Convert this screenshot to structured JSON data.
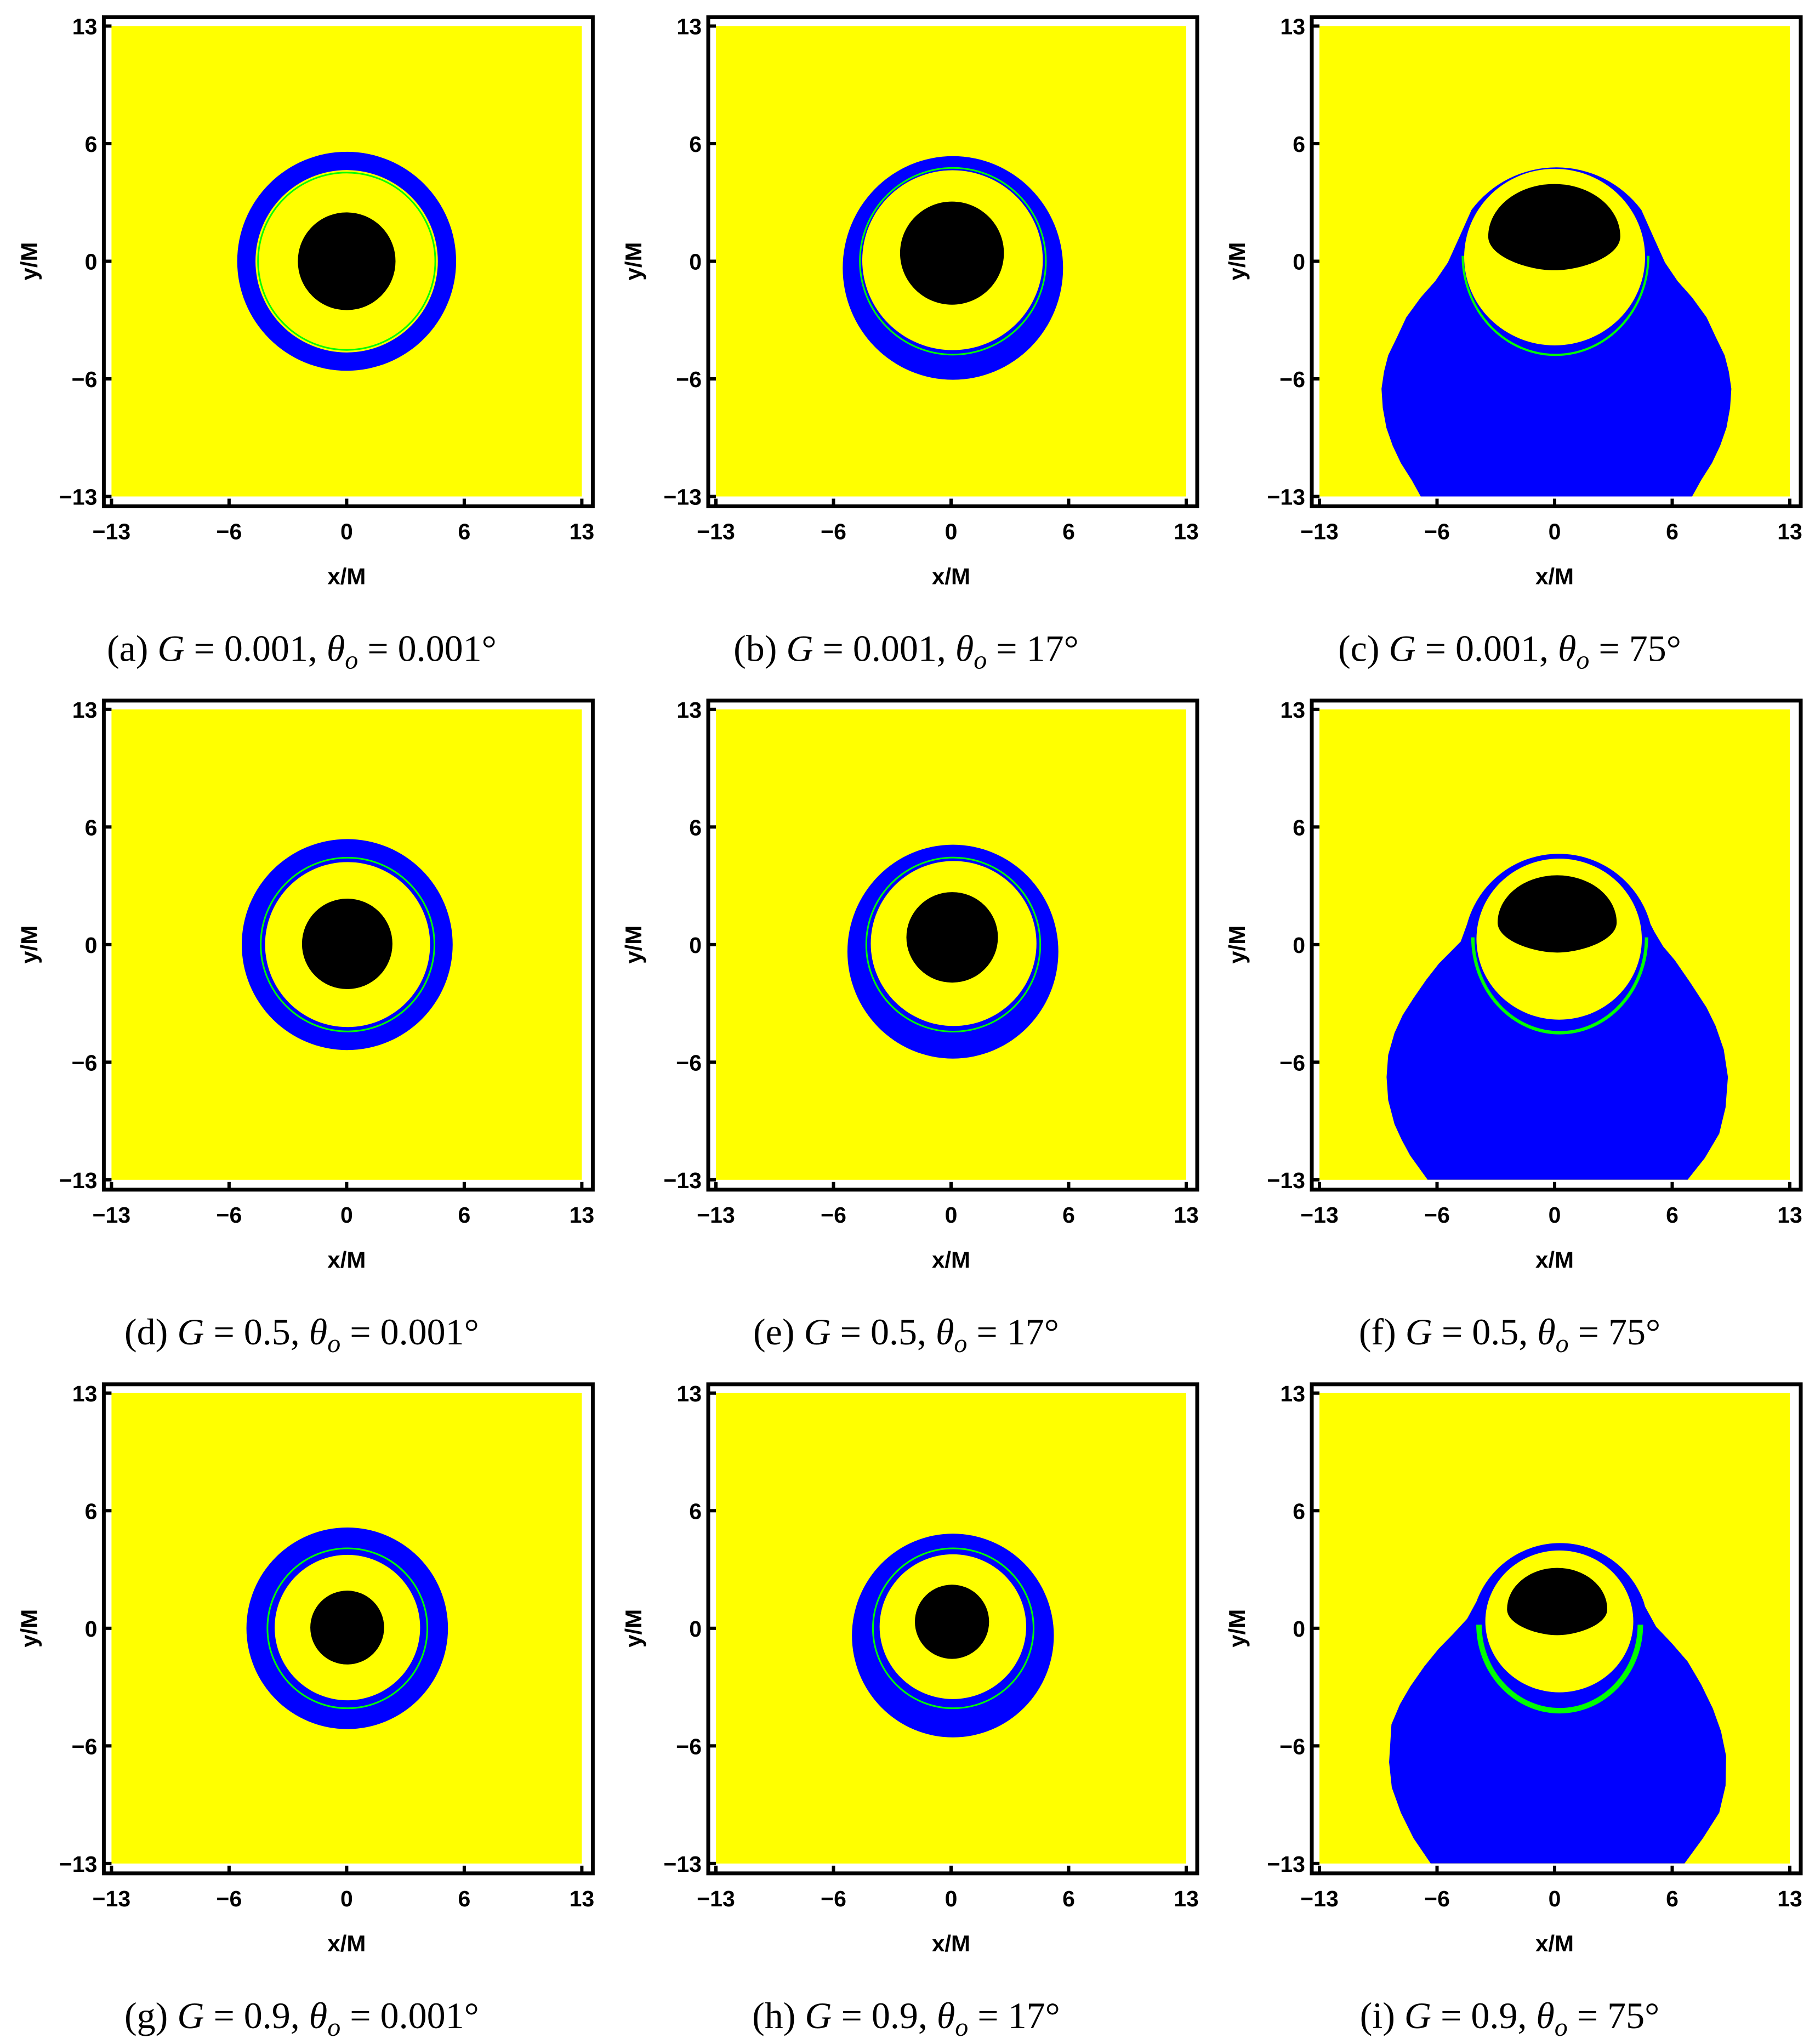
{
  "figure": {
    "colors": {
      "background_region": "#FFFF00",
      "blue_region": "#0000FF",
      "black_region": "#000000",
      "green_ring": "#00FF00",
      "frame": "#000000"
    },
    "x_axis_label": "x/M",
    "y_axis_label": "y/M",
    "axis_range": [
      -13,
      13
    ],
    "tick_labels": [
      "−13",
      "−6",
      "0",
      "6",
      "13"
    ],
    "caption_symbols": {
      "G": "G",
      "theta": "θ",
      "theta_sub": "o",
      "equals": " = ",
      "comma": ", "
    }
  },
  "chart_data": [
    {
      "type": "heatmap",
      "label": "(a)",
      "G": "0.001",
      "theta": "0.001°",
      "blue_region": {
        "shape": "ellipse",
        "center": [
          0,
          0
        ],
        "r": [
          6.05,
          6.05
        ]
      },
      "inner_region": {
        "center": [
          0,
          0
        ],
        "r": [
          5.04,
          5.04
        ]
      },
      "green_ring": {
        "center": [
          0,
          0
        ],
        "r": [
          4.9,
          4.9
        ],
        "full": true
      },
      "black_region": {
        "shape": "ellipse",
        "center": [
          0,
          0
        ],
        "r": [
          2.7,
          2.7
        ]
      }
    },
    {
      "type": "heatmap",
      "label": "(b)",
      "G": "0.001",
      "theta": "17°",
      "blue_region": {
        "shape": "ellipse",
        "center": [
          0.1,
          -0.37
        ],
        "r": [
          6.09,
          6.18
        ]
      },
      "inner_region": {
        "center": [
          0.08,
          0.06
        ],
        "r": [
          4.99,
          4.97
        ]
      },
      "green_ring": {
        "center": [
          0.1,
          0
        ],
        "r": [
          5.14,
          5.16
        ],
        "full": true
      },
      "black_region": {
        "shape": "ellipse",
        "center": [
          0.05,
          0.45
        ],
        "r": [
          2.87,
          2.85
        ]
      }
    },
    {
      "type": "heatmap",
      "label": "(c)",
      "G": "0.001",
      "theta": "75°",
      "blue_region": {
        "shape": "outline",
        "cap_center": [
          0.1,
          -0.64
        ],
        "cap_r": 5.86,
        "outline": [
          [
            -4.6,
            2.83
          ],
          [
            -5.25,
            1.37
          ],
          [
            -5.9,
            -0.07
          ],
          [
            -6.6,
            -1.1
          ],
          [
            -7.4,
            -2.0
          ],
          [
            -8.2,
            -3.1
          ],
          [
            -8.7,
            -4.17
          ],
          [
            -9.2,
            -5.2
          ],
          [
            -9.43,
            -6.1
          ],
          [
            -9.57,
            -7.05
          ],
          [
            -9.5,
            -8.1
          ],
          [
            -9.3,
            -9.2
          ],
          [
            -8.95,
            -10.2
          ],
          [
            -8.5,
            -11.15
          ],
          [
            -7.9,
            -12.1
          ],
          [
            -7.4,
            -13
          ],
          [
            7.6,
            -13
          ],
          [
            8.1,
            -12.1
          ],
          [
            8.7,
            -11.15
          ],
          [
            9.15,
            -10.2
          ],
          [
            9.5,
            -9.2
          ],
          [
            9.7,
            -8.1
          ],
          [
            9.77,
            -7.05
          ],
          [
            9.63,
            -6.1
          ],
          [
            9.4,
            -5.2
          ],
          [
            8.9,
            -4.17
          ],
          [
            8.4,
            -3.1
          ],
          [
            7.6,
            -2.0
          ],
          [
            6.8,
            -1.1
          ],
          [
            6.1,
            -0.07
          ],
          [
            5.45,
            1.37
          ],
          [
            4.8,
            2.83
          ]
        ]
      },
      "inner_region": {
        "center": [
          0,
          0.23
        ],
        "r": [
          5.0,
          4.88
        ]
      },
      "green_ring": {
        "center": [
          0.05,
          0.3
        ],
        "r": [
          5.13,
          5.48
        ],
        "full": false
      },
      "black_region": {
        "shape": "d",
        "x": [
          -3.67,
          3.63
        ],
        "y": [
          -0.5,
          4.27
        ],
        "widest_y": 1.37
      }
    },
    {
      "type": "heatmap",
      "label": "(d)",
      "G": "0.5",
      "theta": "0.001°",
      "blue_region": {
        "shape": "ellipse",
        "center": [
          0.03,
          0
        ],
        "r": [
          5.83,
          5.83
        ]
      },
      "inner_region": {
        "center": [
          0.05,
          0
        ],
        "r": [
          4.56,
          4.56
        ]
      },
      "green_ring": {
        "center": [
          0.05,
          0
        ],
        "r": [
          4.8,
          4.8
        ],
        "full": true
      },
      "black_region": {
        "shape": "ellipse",
        "center": [
          0.03,
          0.04
        ],
        "r": [
          2.5,
          2.5
        ]
      }
    },
    {
      "type": "heatmap",
      "label": "(e)",
      "G": "0.5",
      "theta": "17°",
      "blue_region": {
        "shape": "ellipse",
        "center": [
          0.1,
          -0.39
        ],
        "r": [
          5.83,
          5.91
        ]
      },
      "inner_region": {
        "center": [
          0.14,
          0.06
        ],
        "r": [
          4.58,
          4.56
        ]
      },
      "green_ring": {
        "center": [
          0.12,
          0
        ],
        "r": [
          4.81,
          4.81
        ],
        "full": true
      },
      "black_region": {
        "shape": "ellipse",
        "center": [
          0.06,
          0.4
        ],
        "r": [
          2.53,
          2.5
        ]
      }
    },
    {
      "type": "heatmap",
      "label": "(f)",
      "G": "0.5",
      "theta": "75°",
      "blue_region": {
        "shape": "outline",
        "cap_center": [
          0.25,
          -0.25
        ],
        "cap_r": 5.25,
        "outline": [
          [
            -4.84,
            1.13
          ],
          [
            -5.19,
            0.17
          ],
          [
            -5.8,
            -0.45
          ],
          [
            -6.4,
            -1.05
          ],
          [
            -7.1,
            -1.95
          ],
          [
            -7.8,
            -2.96
          ],
          [
            -8.4,
            -3.9
          ],
          [
            -8.85,
            -4.88
          ],
          [
            -9.2,
            -6.1
          ],
          [
            -9.29,
            -7.32
          ],
          [
            -9.2,
            -8.6
          ],
          [
            -8.85,
            -9.93
          ],
          [
            -8.45,
            -10.8
          ],
          [
            -7.98,
            -11.67
          ],
          [
            -7.02,
            -13
          ],
          [
            7.35,
            -13
          ],
          [
            8.3,
            -11.8
          ],
          [
            9.1,
            -10.45
          ],
          [
            9.45,
            -9.0
          ],
          [
            9.58,
            -7.32
          ],
          [
            9.35,
            -5.8
          ],
          [
            8.9,
            -4.5
          ],
          [
            8.4,
            -3.48
          ],
          [
            7.5,
            -2.1
          ],
          [
            6.65,
            -0.87
          ],
          [
            6.0,
            -0.1
          ],
          [
            5.52,
            0.7
          ],
          [
            5.3,
            1.13
          ]
        ]
      },
      "inner_region": {
        "center": [
          0.25,
          0.3
        ],
        "r": [
          4.57,
          4.45
        ]
      },
      "green_ring": {
        "center": [
          0.28,
          0.4
        ],
        "r": [
          4.8,
          5.28
        ],
        "full": false
      },
      "black_region": {
        "shape": "d",
        "x": [
          -3.15,
          3.43
        ],
        "y": [
          -0.44,
          3.83
        ],
        "widest_y": 1.22
      }
    },
    {
      "type": "heatmap",
      "label": "(g)",
      "G": "0.9",
      "theta": "0.001°",
      "blue_region": {
        "shape": "ellipse",
        "center": [
          0.03,
          0
        ],
        "r": [
          5.57,
          5.57
        ]
      },
      "inner_region": {
        "center": [
          0.04,
          0.04
        ],
        "r": [
          4.02,
          4.02
        ]
      },
      "green_ring": {
        "center": [
          0.04,
          0
        ],
        "r": [
          4.42,
          4.42
        ],
        "full": true
      },
      "black_region": {
        "shape": "ellipse",
        "center": [
          0.03,
          0.04
        ],
        "r": [
          2.04,
          2.04
        ]
      }
    },
    {
      "type": "heatmap",
      "label": "(h)",
      "G": "0.9",
      "theta": "17°",
      "blue_region": {
        "shape": "ellipse",
        "center": [
          0.1,
          -0.4
        ],
        "r": [
          5.58,
          5.63
        ]
      },
      "inner_region": {
        "center": [
          0.1,
          0.09
        ],
        "r": [
          4.05,
          4.0
        ]
      },
      "green_ring": {
        "center": [
          0.12,
          0
        ],
        "r": [
          4.44,
          4.42
        ],
        "full": true
      },
      "black_region": {
        "shape": "ellipse",
        "center": [
          0.05,
          0.36
        ],
        "r": [
          2.05,
          2.05
        ]
      }
    },
    {
      "type": "heatmap",
      "label": "(i)",
      "G": "0.9",
      "theta": "75°",
      "blue_region": {
        "shape": "outline",
        "cap_center": [
          0.3,
          -0.22
        ],
        "cap_r": 4.92,
        "outline": [
          [
            -4.32,
            1.48
          ],
          [
            -4.84,
            0.52
          ],
          [
            -5.6,
            -0.3
          ],
          [
            -6.41,
            -1.13
          ],
          [
            -7.2,
            -2.1
          ],
          [
            -7.98,
            -3.22
          ],
          [
            -8.55,
            -4.2
          ],
          [
            -9.02,
            -5.31
          ],
          [
            -9.15,
            -7.4
          ],
          [
            -9.0,
            -8.8
          ],
          [
            -8.5,
            -10.19
          ],
          [
            -7.8,
            -11.6
          ],
          [
            -6.85,
            -13
          ],
          [
            7.18,
            -13
          ],
          [
            8.2,
            -11.6
          ],
          [
            9.1,
            -10.19
          ],
          [
            9.45,
            -8.7
          ],
          [
            9.48,
            -7.06
          ],
          [
            9.2,
            -5.7
          ],
          [
            8.75,
            -4.44
          ],
          [
            8.1,
            -3.1
          ],
          [
            7.35,
            -1.83
          ],
          [
            6.5,
            -0.85
          ],
          [
            5.61,
            0.09
          ],
          [
            5.0,
            1.2
          ],
          [
            4.92,
            1.48
          ]
        ]
      },
      "inner_region": {
        "center": [
          0.26,
          0.38
        ],
        "r": [
          4.09,
          3.92
        ]
      },
      "green_ring": {
        "center": [
          0.28,
          0.2
        ],
        "r": [
          4.46,
          4.76
        ],
        "full": false
      },
      "black_region": {
        "shape": "d",
        "x": [
          -2.63,
          2.91
        ],
        "y": [
          -0.38,
          3.34
        ],
        "widest_y": 1.05
      }
    }
  ]
}
